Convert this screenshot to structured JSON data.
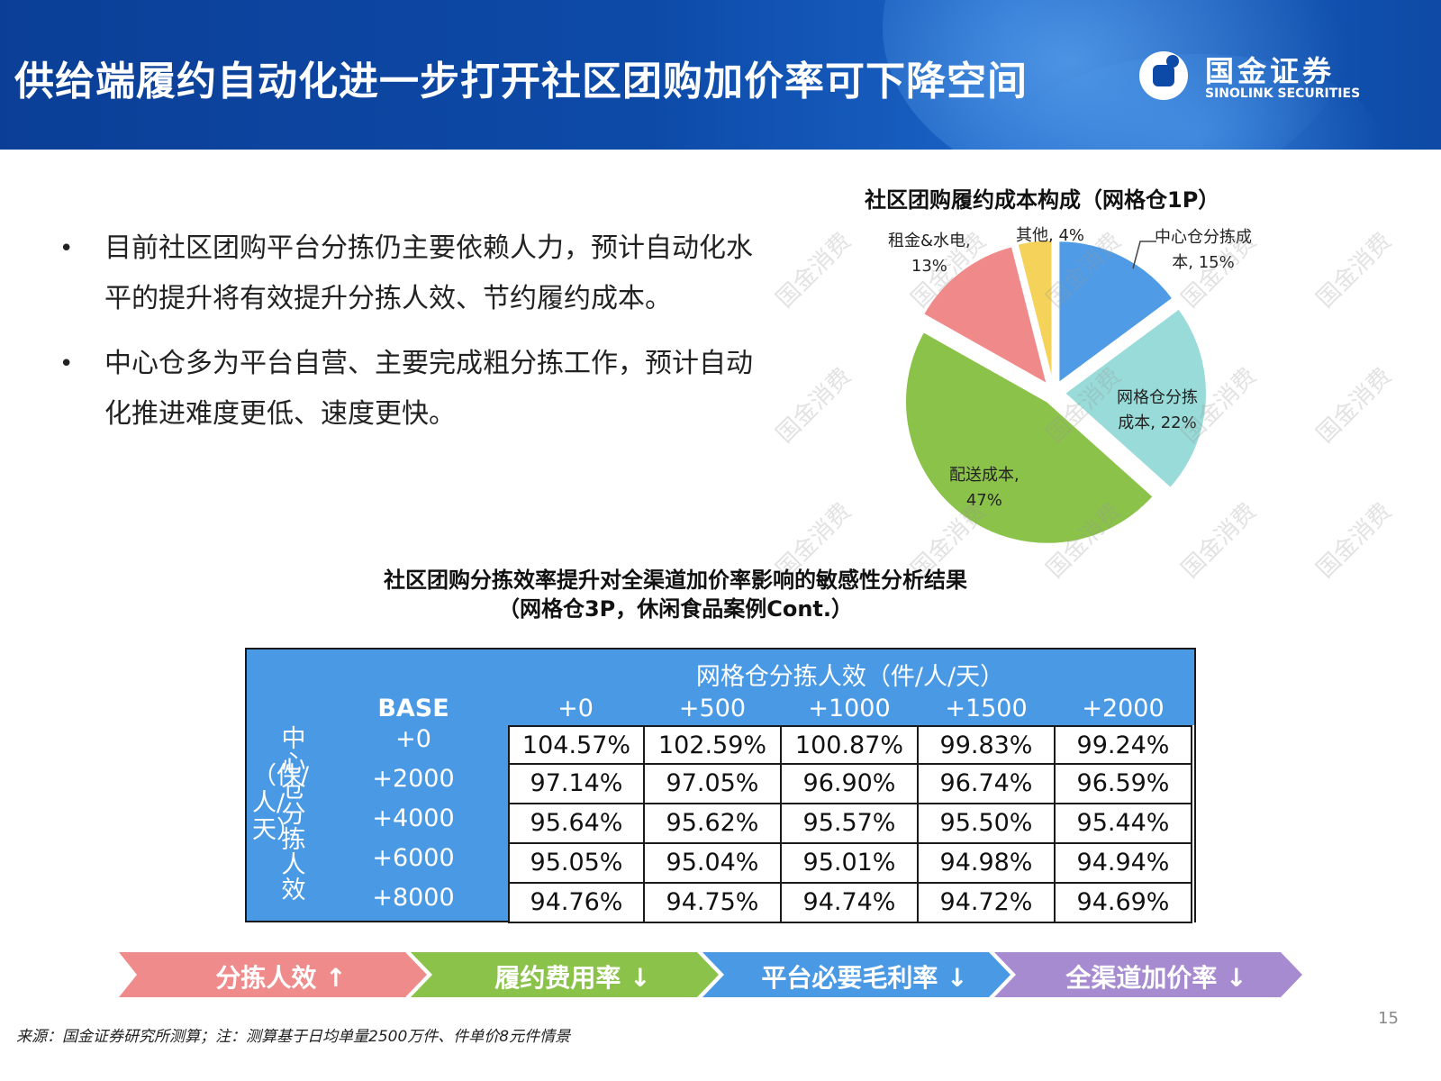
{
  "header": {
    "title": "供给端履约自动化进一步打开社区团购加价率可下降空间"
  },
  "logo": {
    "name_cn": "国金证券",
    "name_en": "SINOLINK SECURITIES"
  },
  "bullets": [
    "目前社区团购平台分拣仍主要依赖人力，预计自动化水平的提升将有效提升分拣人效、节约履约成本。",
    "中心仓多为平台自营、主要完成粗分拣工作，预计自动化推进难度更低、速度更快。"
  ],
  "bullet_marker": "•",
  "chart_data": [
    {
      "type": "pie",
      "title": "社区团购履约成本构成（网格仓1P）",
      "slices": [
        {
          "label": "中心仓分拣成本, 15%",
          "value": 15,
          "color": "#4f9be6"
        },
        {
          "label": "网格仓分拣成本, 22%",
          "value": 22,
          "color": "#98dbd9"
        },
        {
          "label": "配送成本, 47%",
          "value": 47,
          "color": "#8bc34a"
        },
        {
          "label": "租金&水电, 13%",
          "value": 13,
          "color": "#f08a8a"
        },
        {
          "label": "其他, 4%",
          "value": 4,
          "color": "#f5d35a"
        }
      ],
      "label_lines": {
        "center": [
          "中心仓分拣成",
          "本, 15%"
        ],
        "grid": [
          "网格仓分拣",
          "成本, 22%"
        ],
        "delivery": [
          "配送成本,",
          "47%"
        ],
        "rent": [
          "租金&水电,",
          "13%"
        ],
        "other": [
          "其他, 4%"
        ]
      }
    },
    {
      "type": "table",
      "title_line1": "社区团购分拣效率提升对全渠道加价率影响的敏感性分析结果",
      "title_line2": "（网格仓3P，休闲食品案例Cont.）",
      "col_axis_label": "网格仓分拣人效（件/人/天）",
      "row_axis_label_a": "中心仓分拣人效",
      "row_axis_label_b": "（件/人/天）",
      "corner": "BASE",
      "columns": [
        "+0",
        "+500",
        "+1000",
        "+1500",
        "+2000"
      ],
      "rows": [
        "+0",
        "+2000",
        "+4000",
        "+6000",
        "+8000"
      ],
      "values": [
        [
          "104.57%",
          "102.59%",
          "100.87%",
          "99.83%",
          "99.24%"
        ],
        [
          "97.14%",
          "97.05%",
          "96.90%",
          "96.74%",
          "96.59%"
        ],
        [
          "95.64%",
          "95.62%",
          "95.57%",
          "95.50%",
          "95.44%"
        ],
        [
          "95.05%",
          "95.04%",
          "95.01%",
          "94.98%",
          "94.94%"
        ],
        [
          "94.76%",
          "94.75%",
          "94.74%",
          "94.72%",
          "94.69%"
        ]
      ]
    }
  ],
  "flow": [
    {
      "label": "分拣人效 ↑",
      "color": "#ef8b8b"
    },
    {
      "label": "履约费用率 ↓",
      "color": "#8bc34a"
    },
    {
      "label": "平台必要毛利率 ↓",
      "color": "#4a99e4"
    },
    {
      "label": "全渠道加价率 ↓",
      "color": "#a78bd0"
    }
  ],
  "watermark": "国金消费",
  "footer": {
    "source": "来源：国金证券研究所测算；注：测算基于日均单量2500万件、件单价8元件情景",
    "page": "15"
  }
}
